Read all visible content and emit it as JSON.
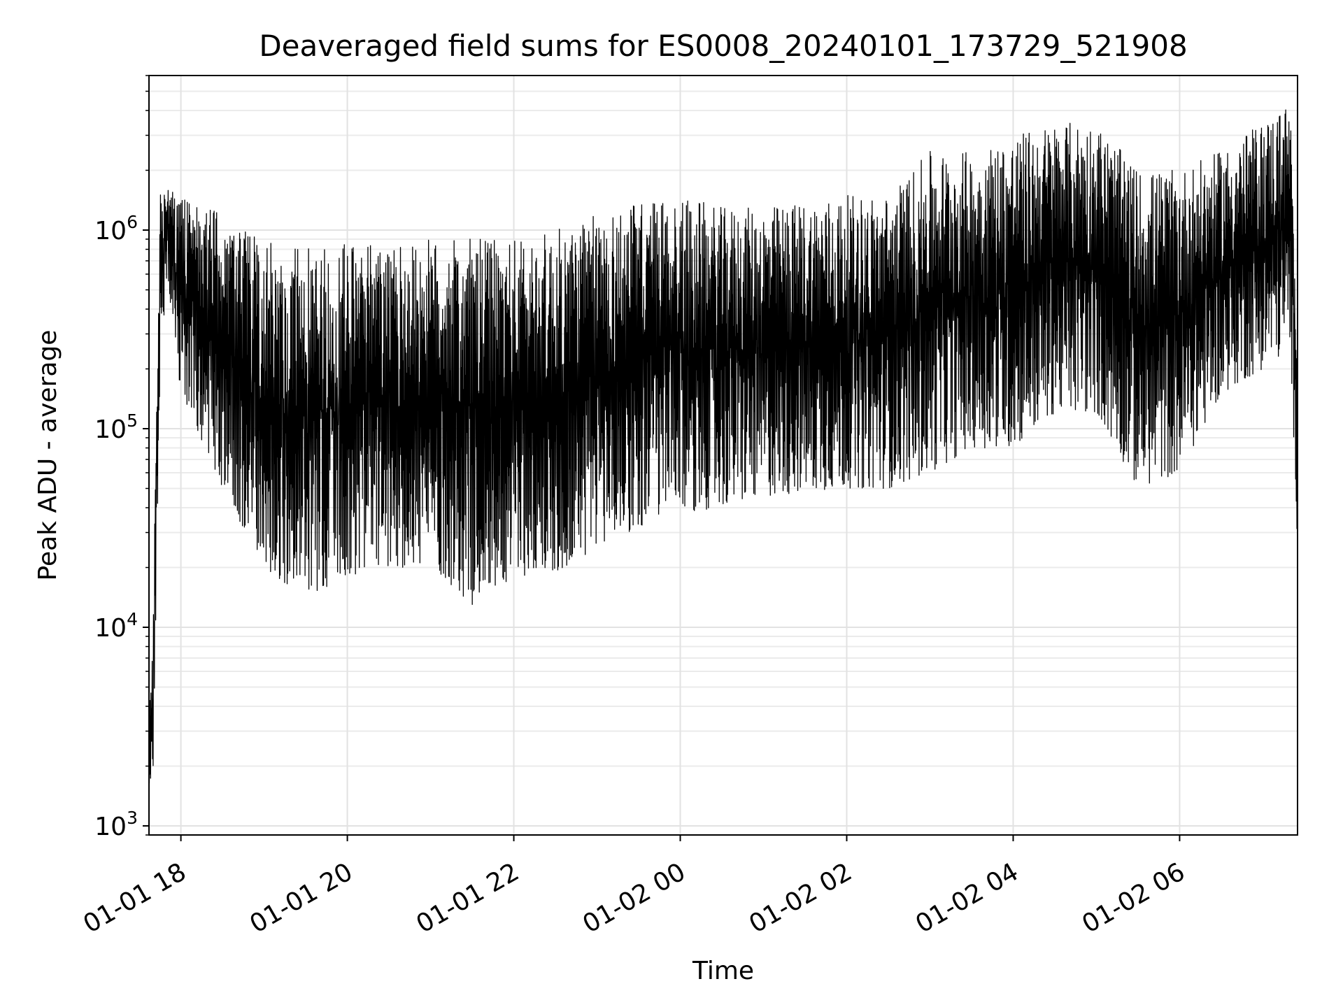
{
  "chart_data": {
    "type": "line",
    "title": "Deaveraged field sums for ES0008_20240101_173729_521908",
    "xlabel": "Time",
    "ylabel": "Peak ADU - average",
    "yscale": "log",
    "grid": true,
    "legend": "none",
    "x_range": [
      "2024-01-01 17:37",
      "2024-01-02 07:25"
    ],
    "ylim": [
      900,
      6000000
    ],
    "x_ticks": [
      {
        "t": "2024-01-01 18:00",
        "label": "01-01 18"
      },
      {
        "t": "2024-01-01 20:00",
        "label": "01-01 20"
      },
      {
        "t": "2024-01-01 22:00",
        "label": "01-01 22"
      },
      {
        "t": "2024-01-02 00:00",
        "label": "01-02 00"
      },
      {
        "t": "2024-01-02 02:00",
        "label": "01-02 02"
      },
      {
        "t": "2024-01-02 04:00",
        "label": "01-02 04"
      },
      {
        "t": "2024-01-02 06:00",
        "label": "01-02 06"
      }
    ],
    "y_ticks": [
      {
        "value": 1000,
        "base": "10",
        "exp": "3"
      },
      {
        "value": 10000,
        "base": "10",
        "exp": "4"
      },
      {
        "value": 100000,
        "base": "10",
        "exp": "5"
      },
      {
        "value": 1000000,
        "base": "10",
        "exp": "6"
      }
    ],
    "series": [
      {
        "color": "#000000",
        "envelope": [
          {
            "t": "2024-01-01 17:37",
            "low": 1500,
            "high": 3000
          },
          {
            "t": "2024-01-01 17:40",
            "low": 2000,
            "high": 11000
          },
          {
            "t": "2024-01-01 17:45",
            "low": 200000,
            "high": 1500000
          },
          {
            "t": "2024-01-01 17:50",
            "low": 600000,
            "high": 1800000
          },
          {
            "t": "2024-01-01 18:00",
            "low": 150000,
            "high": 1500000
          },
          {
            "t": "2024-01-01 18:30",
            "low": 50000,
            "high": 1200000
          },
          {
            "t": "2024-01-01 19:00",
            "low": 20000,
            "high": 900000
          },
          {
            "t": "2024-01-01 19:30",
            "low": 14000,
            "high": 800000
          },
          {
            "t": "2024-01-01 20:00",
            "low": 18000,
            "high": 900000
          },
          {
            "t": "2024-01-01 20:30",
            "low": 20000,
            "high": 800000
          },
          {
            "t": "2024-01-01 21:00",
            "low": 20000,
            "high": 900000
          },
          {
            "t": "2024-01-01 21:30",
            "low": 13000,
            "high": 900000
          },
          {
            "t": "2024-01-01 22:00",
            "low": 18000,
            "high": 900000
          },
          {
            "t": "2024-01-01 22:30",
            "low": 18000,
            "high": 1000000
          },
          {
            "t": "2024-01-01 23:00",
            "low": 25000,
            "high": 1200000
          },
          {
            "t": "2024-01-01 23:30",
            "low": 32000,
            "high": 1400000
          },
          {
            "t": "2024-01-02 00:00",
            "low": 38000,
            "high": 1500000
          },
          {
            "t": "2024-01-02 00:30",
            "low": 40000,
            "high": 1300000
          },
          {
            "t": "2024-01-02 01:00",
            "low": 45000,
            "high": 1300000
          },
          {
            "t": "2024-01-02 01:30",
            "low": 48000,
            "high": 1400000
          },
          {
            "t": "2024-01-02 02:00",
            "low": 50000,
            "high": 1500000
          },
          {
            "t": "2024-01-02 02:30",
            "low": 50000,
            "high": 1500000
          },
          {
            "t": "2024-01-02 03:00",
            "low": 60000,
            "high": 2500000
          },
          {
            "t": "2024-01-02 03:30",
            "low": 80000,
            "high": 2500000
          },
          {
            "t": "2024-01-02 04:00",
            "low": 80000,
            "high": 3000000
          },
          {
            "t": "2024-01-02 04:30",
            "low": 120000,
            "high": 3500000
          },
          {
            "t": "2024-01-02 05:00",
            "low": 120000,
            "high": 3500000
          },
          {
            "t": "2024-01-02 05:30",
            "low": 50000,
            "high": 2000000
          },
          {
            "t": "2024-01-02 06:00",
            "low": 60000,
            "high": 2000000
          },
          {
            "t": "2024-01-02 06:30",
            "low": 150000,
            "high": 2500000
          },
          {
            "t": "2024-01-02 07:00",
            "low": 200000,
            "high": 3500000
          },
          {
            "t": "2024-01-02 07:20",
            "low": 250000,
            "high": 4500000
          },
          {
            "t": "2024-01-02 07:25",
            "low": 25000,
            "high": 150000
          }
        ]
      }
    ]
  }
}
